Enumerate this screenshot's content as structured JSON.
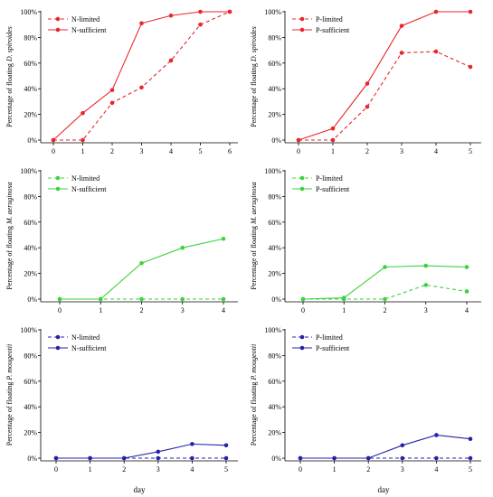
{
  "figure": {
    "xlabel": "day"
  },
  "chart_data": [
    {
      "type": "line",
      "panel": "a",
      "ylabel_prefix": "Percentage of floating ",
      "ylabel_species": "D. spiroides",
      "x": [
        0,
        1,
        2,
        3,
        4,
        5,
        6
      ],
      "ylim": [
        0,
        100
      ],
      "yticks": [
        "0%",
        "20%",
        "40%",
        "60%",
        "80%",
        "100%"
      ],
      "color": "#e8262b",
      "legend_position": "top-left",
      "series": [
        {
          "name": "N-limited",
          "style": "dashed",
          "values": [
            0,
            0,
            29,
            41,
            62,
            90,
            100
          ]
        },
        {
          "name": "N-sufficient",
          "style": "solid",
          "values": [
            0,
            21,
            39,
            91,
            97,
            100,
            100
          ]
        }
      ]
    },
    {
      "type": "line",
      "panel": "b",
      "ylabel_prefix": "Percentage of floating ",
      "ylabel_species": "D. spiroides",
      "x": [
        0,
        1,
        2,
        3,
        4,
        5
      ],
      "ylim": [
        0,
        100
      ],
      "yticks": [
        "0%",
        "20%",
        "40%",
        "60%",
        "80%",
        "100%"
      ],
      "color": "#e8262b",
      "legend_position": "top-left",
      "series": [
        {
          "name": "P-limited",
          "style": "dashed",
          "values": [
            0,
            0,
            26,
            68,
            69,
            57
          ]
        },
        {
          "name": "P-sufficient",
          "style": "solid",
          "values": [
            0,
            9,
            44,
            89,
            100,
            100
          ]
        }
      ]
    },
    {
      "type": "line",
      "panel": "c",
      "ylabel_prefix": "Percentage of floating ",
      "ylabel_species": "M. aeruginosa",
      "x": [
        0,
        1,
        2,
        3,
        4
      ],
      "ylim": [
        0,
        100
      ],
      "yticks": [
        "0%",
        "20%",
        "40%",
        "60%",
        "80%",
        "100%"
      ],
      "color": "#3ed13e",
      "legend_position": "top-left",
      "series": [
        {
          "name": "N-limited",
          "style": "dashed",
          "values": [
            0,
            0,
            0,
            0,
            0
          ]
        },
        {
          "name": "N-sufficient",
          "style": "solid",
          "values": [
            0,
            0,
            28,
            40,
            47
          ]
        }
      ]
    },
    {
      "type": "line",
      "panel": "d",
      "ylabel_prefix": "Percentage of floating ",
      "ylabel_species": "M. aeruginosa",
      "x": [
        0,
        1,
        2,
        3,
        4
      ],
      "ylim": [
        0,
        100
      ],
      "yticks": [
        "0%",
        "20%",
        "40%",
        "60%",
        "80%",
        "100%"
      ],
      "color": "#3ed13e",
      "legend_position": "top-left",
      "series": [
        {
          "name": "P-limited",
          "style": "dashed",
          "values": [
            0,
            0,
            0,
            11,
            6
          ]
        },
        {
          "name": "P-sufficient",
          "style": "solid",
          "values": [
            0,
            1,
            25,
            26,
            25
          ]
        }
      ]
    },
    {
      "type": "line",
      "panel": "e",
      "ylabel_prefix": "Percentage of floating ",
      "ylabel_species": "P. mougeotii",
      "x": [
        0,
        1,
        2,
        3,
        4,
        5
      ],
      "ylim": [
        0,
        100
      ],
      "yticks": [
        "0%",
        "20%",
        "40%",
        "60%",
        "80%",
        "100%"
      ],
      "color": "#2323a8",
      "legend_position": "top-left",
      "series": [
        {
          "name": "N-limited",
          "style": "dashed",
          "values": [
            0,
            0,
            0,
            0,
            0,
            0
          ]
        },
        {
          "name": "N-sufficient",
          "style": "solid",
          "values": [
            0,
            0,
            0,
            5,
            11,
            10
          ]
        }
      ]
    },
    {
      "type": "line",
      "panel": "f",
      "ylabel_prefix": "Percentage of floating ",
      "ylabel_species": "P. mougeotii",
      "x": [
        0,
        1,
        2,
        3,
        4,
        5
      ],
      "ylim": [
        0,
        100
      ],
      "yticks": [
        "0%",
        "20%",
        "40%",
        "60%",
        "80%",
        "100%"
      ],
      "color": "#2323a8",
      "legend_position": "top-left",
      "series": [
        {
          "name": "P-limited",
          "style": "dashed",
          "values": [
            0,
            0,
            0,
            0,
            0,
            0
          ]
        },
        {
          "name": "P-sufficient",
          "style": "solid",
          "values": [
            0,
            0,
            0,
            10,
            18,
            15
          ]
        }
      ]
    }
  ]
}
